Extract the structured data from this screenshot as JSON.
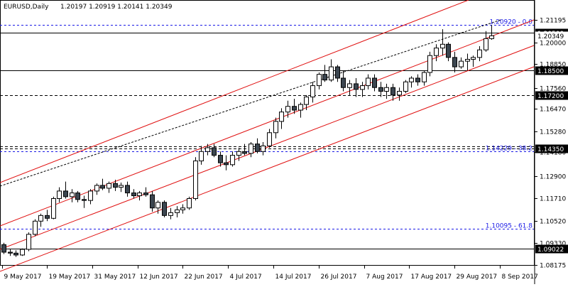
{
  "header": {
    "symbol_timeframe": "EURUSD,Daily",
    "ohlc": "1.20197 1.20919 1.20141 1.20349"
  },
  "chart_data": {
    "type": "candlestick",
    "ylim": [
      1.0817,
      1.2195
    ],
    "y_ticks": [
      "1.21195",
      "1.20000",
      "1.18850",
      "1.17560",
      "1.16470",
      "1.15280",
      "1.14180",
      "1.12900",
      "1.11710",
      "1.10520",
      "1.09330",
      "1.08175"
    ],
    "x_ticks": [
      "9 May 2017",
      "19 May 2017",
      "31 May 2017",
      "12 Jun 2017",
      "22 Jun 2017",
      "4 Jul 2017",
      "14 Jul 2017",
      "26 Jul 2017",
      "7 Aug 2017",
      "17 Aug 2017",
      "29 Aug 2017",
      "8 Sep 2017"
    ],
    "horizontal_levels": [
      {
        "price": 1.205,
        "label": "1.20500",
        "style": "solid"
      },
      {
        "price": 1.185,
        "label": "1.18500",
        "style": "solid"
      },
      {
        "price": 1.172,
        "label": "1.17200",
        "style": "dashed"
      },
      {
        "price": 1.1435,
        "label": "1.14350",
        "style": "dashed"
      },
      {
        "price": 1.0902,
        "label": "1.09022",
        "style": "solid"
      }
    ],
    "fib_levels": [
      {
        "price": 1.2092,
        "label": "1.20920 - 0.0"
      },
      {
        "price": 1.14229,
        "label": "1.14229 - 38.2"
      },
      {
        "price": 1.10095,
        "label": "1.10095 - 61.8"
      }
    ],
    "last_price_label": "1.20349",
    "candles": [
      [
        1.0925,
        1.0935,
        1.0875,
        1.0885
      ],
      [
        1.0885,
        1.09,
        1.0865,
        1.088
      ],
      [
        1.088,
        1.0895,
        1.086,
        1.087
      ],
      [
        1.087,
        1.0905,
        1.0865,
        1.09
      ],
      [
        1.09,
        1.099,
        1.089,
        1.098
      ],
      [
        1.098,
        1.106,
        1.097,
        1.105
      ],
      [
        1.105,
        1.109,
        1.102,
        1.108
      ],
      [
        1.108,
        1.111,
        1.105,
        1.1065
      ],
      [
        1.1065,
        1.118,
        1.106,
        1.117
      ],
      [
        1.117,
        1.123,
        1.115,
        1.121
      ],
      [
        1.121,
        1.126,
        1.117,
        1.118
      ],
      [
        1.118,
        1.122,
        1.115,
        1.12
      ],
      [
        1.12,
        1.121,
        1.115,
        1.1165
      ],
      [
        1.1165,
        1.1185,
        1.112,
        1.116
      ],
      [
        1.116,
        1.122,
        1.114,
        1.121
      ],
      [
        1.121,
        1.125,
        1.119,
        1.124
      ],
      [
        1.124,
        1.1275,
        1.1215,
        1.1225
      ],
      [
        1.1225,
        1.126,
        1.12,
        1.125
      ],
      [
        1.125,
        1.127,
        1.121,
        1.123
      ],
      [
        1.123,
        1.1255,
        1.1205,
        1.124
      ],
      [
        1.124,
        1.126,
        1.118,
        1.12
      ],
      [
        1.12,
        1.122,
        1.117,
        1.1185
      ],
      [
        1.1185,
        1.121,
        1.116,
        1.12
      ],
      [
        1.12,
        1.123,
        1.118,
        1.119
      ],
      [
        1.119,
        1.121,
        1.11,
        1.112
      ],
      [
        1.112,
        1.116,
        1.109,
        1.115
      ],
      [
        1.115,
        1.116,
        1.107,
        1.108
      ],
      [
        1.108,
        1.112,
        1.106,
        1.1095
      ],
      [
        1.1095,
        1.113,
        1.107,
        1.111
      ],
      [
        1.111,
        1.114,
        1.109,
        1.112
      ],
      [
        1.112,
        1.118,
        1.111,
        1.117
      ],
      [
        1.117,
        1.139,
        1.116,
        1.137
      ],
      [
        1.137,
        1.145,
        1.135,
        1.142
      ],
      [
        1.142,
        1.146,
        1.14,
        1.144
      ],
      [
        1.144,
        1.146,
        1.139,
        1.14
      ],
      [
        1.14,
        1.142,
        1.134,
        1.136
      ],
      [
        1.136,
        1.14,
        1.132,
        1.135
      ],
      [
        1.135,
        1.142,
        1.134,
        1.14
      ],
      [
        1.14,
        1.144,
        1.137,
        1.142
      ],
      [
        1.142,
        1.146,
        1.14,
        1.141
      ],
      [
        1.141,
        1.147,
        1.139,
        1.146
      ],
      [
        1.146,
        1.149,
        1.141,
        1.142
      ],
      [
        1.142,
        1.147,
        1.14,
        1.145
      ],
      [
        1.145,
        1.154,
        1.144,
        1.152
      ],
      [
        1.152,
        1.16,
        1.149,
        1.158
      ],
      [
        1.158,
        1.165,
        1.154,
        1.163
      ],
      [
        1.163,
        1.169,
        1.16,
        1.166
      ],
      [
        1.166,
        1.17,
        1.162,
        1.164
      ],
      [
        1.164,
        1.168,
        1.16,
        1.167
      ],
      [
        1.167,
        1.172,
        1.164,
        1.171
      ],
      [
        1.171,
        1.179,
        1.168,
        1.177
      ],
      [
        1.177,
        1.184,
        1.175,
        1.183
      ],
      [
        1.183,
        1.188,
        1.179,
        1.18
      ],
      [
        1.18,
        1.191,
        1.179,
        1.187
      ],
      [
        1.187,
        1.188,
        1.179,
        1.181
      ],
      [
        1.181,
        1.185,
        1.174,
        1.176
      ],
      [
        1.176,
        1.18,
        1.172,
        1.178
      ],
      [
        1.178,
        1.181,
        1.171,
        1.175
      ],
      [
        1.175,
        1.179,
        1.171,
        1.177
      ],
      [
        1.177,
        1.183,
        1.175,
        1.181
      ],
      [
        1.181,
        1.183,
        1.174,
        1.176
      ],
      [
        1.176,
        1.179,
        1.171,
        1.174
      ],
      [
        1.174,
        1.178,
        1.17,
        1.176
      ],
      [
        1.176,
        1.178,
        1.169,
        1.172
      ],
      [
        1.172,
        1.176,
        1.169,
        1.174
      ],
      [
        1.174,
        1.18,
        1.173,
        1.179
      ],
      [
        1.179,
        1.182,
        1.176,
        1.181
      ],
      [
        1.181,
        1.183,
        1.177,
        1.179
      ],
      [
        1.179,
        1.185,
        1.177,
        1.184
      ],
      [
        1.184,
        1.195,
        1.182,
        1.193
      ],
      [
        1.193,
        1.199,
        1.19,
        1.197
      ],
      [
        1.197,
        1.207,
        1.193,
        1.199
      ],
      [
        1.199,
        1.2,
        1.19,
        1.192
      ],
      [
        1.192,
        1.195,
        1.184,
        1.187
      ],
      [
        1.187,
        1.192,
        1.186,
        1.19
      ],
      [
        1.19,
        1.194,
        1.185,
        1.191
      ],
      [
        1.191,
        1.193,
        1.187,
        1.192
      ],
      [
        1.192,
        1.198,
        1.19,
        1.196
      ],
      [
        1.196,
        1.206,
        1.195,
        1.202
      ],
      [
        1.202,
        1.2092,
        1.2014,
        1.2035
      ]
    ]
  }
}
